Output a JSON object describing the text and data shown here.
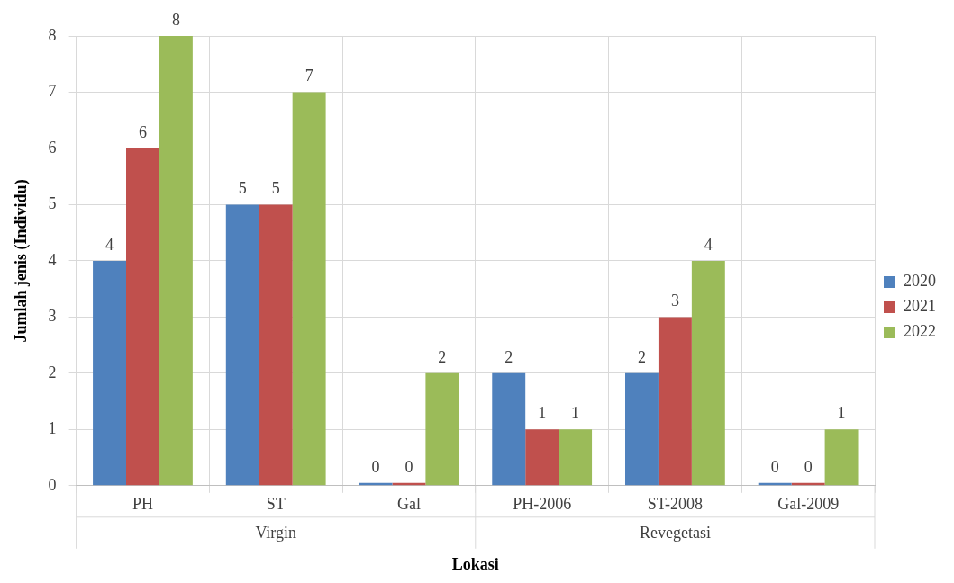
{
  "chart_data": {
    "type": "bar",
    "xlabel": "Lokasi",
    "ylabel": "Jumlah jenis (Individu)",
    "categories": [
      "PH",
      "ST",
      "Gal",
      "PH-2006",
      "ST-2008",
      "Gal-2009"
    ],
    "series": [
      {
        "name": "2020",
        "color": "#4f81bd",
        "values": [
          4,
          5,
          0,
          2,
          2,
          0
        ]
      },
      {
        "name": "2021",
        "color": "#c0504d",
        "values": [
          6,
          5,
          0,
          1,
          3,
          0
        ]
      },
      {
        "name": "2022",
        "color": "#9bbb59",
        "values": [
          8,
          7,
          2,
          1,
          4,
          1
        ]
      }
    ],
    "ylim": [
      0,
      8
    ],
    "yticks": [
      0,
      1,
      2,
      3,
      4,
      5,
      6,
      7,
      8
    ],
    "grid": true,
    "legend": "right",
    "data_labels": true,
    "annotations": [
      "Virgin",
      "Revegetasi"
    ]
  }
}
